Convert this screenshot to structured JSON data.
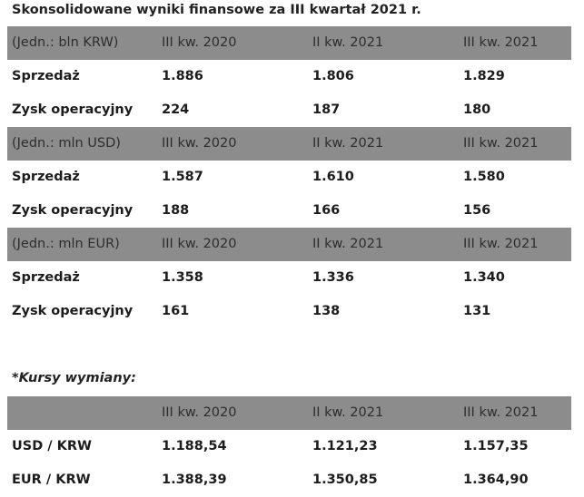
{
  "title": "Skonsolidowane wyniki finansowe za III kwartał 2021 r.",
  "tables": [
    {
      "header": [
        "(Jedn.: bln KRW)",
        "III kw. 2020",
        "II kw. 2021",
        "III kw. 2021"
      ],
      "rows": [
        [
          "Sprzedaż",
          "1.886",
          "1.806",
          "1.829"
        ],
        [
          "Zysk operacyjny",
          "224",
          "187",
          "180"
        ]
      ]
    },
    {
      "header": [
        "(Jedn.: mln USD)",
        "III kw. 2020",
        "II kw. 2021",
        "III kw. 2021"
      ],
      "rows": [
        [
          "Sprzedaż",
          "1.587",
          "1.610",
          "1.580"
        ],
        [
          "Zysk operacyjny",
          "188",
          "166",
          "156"
        ]
      ]
    },
    {
      "header": [
        "(Jedn.: mln EUR)",
        "III kw. 2020",
        "II kw. 2021",
        "III kw. 2021"
      ],
      "rows": [
        [
          "Sprzedaż",
          "1.358",
          "1.336",
          "1.340"
        ],
        [
          "Zysk operacyjny",
          "161",
          "138",
          "131"
        ]
      ]
    }
  ],
  "exchange": {
    "note": "*Kursy wymiany:",
    "header": [
      "",
      "III kw. 2020",
      "II kw. 2021",
      "III kw. 2021"
    ],
    "rows": [
      [
        "USD / KRW",
        "1.188,54",
        "1.121,23",
        "1.157,35"
      ],
      [
        "EUR / KRW",
        "1.388,39",
        "1.350,85",
        "1.364,90"
      ]
    ]
  },
  "colors": {
    "header_band": "#8c8c8c",
    "text": "#1c1c1c"
  }
}
